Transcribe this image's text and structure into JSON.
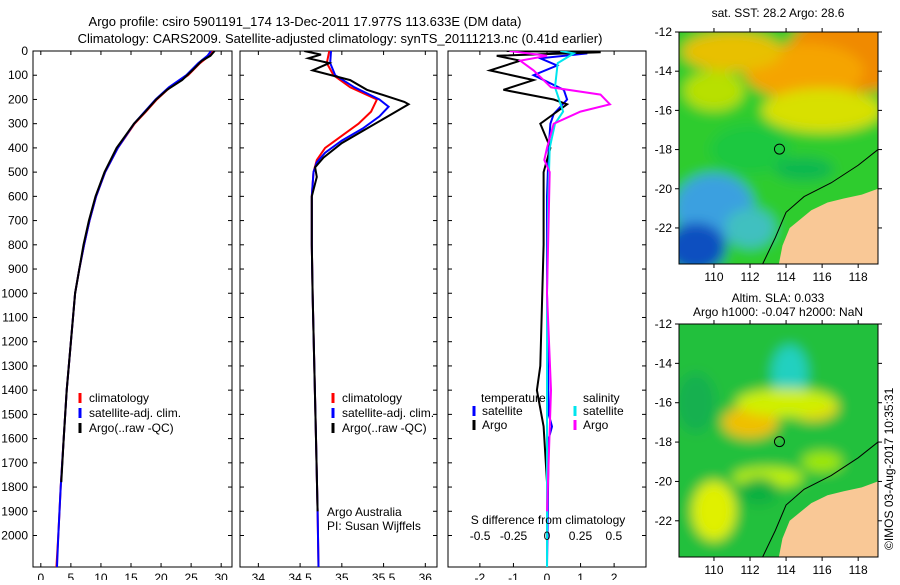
{
  "title": {
    "line1": "Argo profile: csiro 5901191_174 13-Dec-2011 17.977S 113.633E (DM data)",
    "line2": "Climatology: CARS2009. Satellite-adjusted climatology: synTS_20111213.nc (0.41d earlier)"
  },
  "colors": {
    "climatology": "#ff0000",
    "satellite": "#0000ff",
    "argo": "#000000",
    "s_satellite": "#00e5ee",
    "s_argo": "#ff00ff",
    "land": "#f9c896"
  },
  "chart_data": [
    {
      "type": "line",
      "id": "temperature",
      "xlabel": "temperature (deg C)",
      "ylabel": "",
      "xlim": [
        -1.3,
        31.8
      ],
      "ylim": [
        2130,
        0
      ],
      "xticks": [
        0,
        5,
        10,
        15,
        20,
        25,
        30
      ],
      "yticks": [
        0,
        100,
        200,
        300,
        400,
        500,
        600,
        700,
        800,
        900,
        1000,
        1100,
        1200,
        1300,
        1400,
        1500,
        1600,
        1700,
        1800,
        1900,
        2000
      ],
      "legend": [
        "climatology",
        "satellite-adj. clim.",
        "Argo(..raw -QC)"
      ],
      "legend_placement": "bottom-center",
      "series": [
        {
          "name": "climatology",
          "color": "#ff0000",
          "points": [
            [
              28.6,
              0
            ],
            [
              28,
              20
            ],
            [
              26.5,
              50
            ],
            [
              24.5,
              100
            ],
            [
              21.5,
              150
            ],
            [
              19.3,
              200
            ],
            [
              17.5,
              250
            ],
            [
              15.6,
              300
            ],
            [
              12.8,
              400
            ],
            [
              10.7,
              500
            ],
            [
              9.2,
              600
            ],
            [
              8.1,
              700
            ],
            [
              7.2,
              800
            ],
            [
              6.4,
              900
            ],
            [
              5.7,
              1000
            ],
            [
              5,
              1200
            ],
            [
              4.3,
              1400
            ],
            [
              3.8,
              1600
            ],
            [
              3.3,
              1800
            ],
            [
              2.9,
              2000
            ],
            [
              2.6,
              2130
            ]
          ]
        },
        {
          "name": "satellite-adj. clim.",
          "color": "#0000ff",
          "points": [
            [
              28.3,
              0
            ],
            [
              27.7,
              20
            ],
            [
              26.2,
              50
            ],
            [
              24.2,
              100
            ],
            [
              21.3,
              150
            ],
            [
              19.1,
              200
            ],
            [
              17.3,
              250
            ],
            [
              15.5,
              300
            ],
            [
              12.8,
              400
            ],
            [
              10.7,
              500
            ],
            [
              9.2,
              600
            ],
            [
              8.1,
              700
            ],
            [
              7.2,
              800
            ],
            [
              6.4,
              900
            ],
            [
              5.7,
              1000
            ],
            [
              5,
              1200
            ],
            [
              4.3,
              1400
            ],
            [
              3.8,
              1600
            ],
            [
              3.3,
              1800
            ],
            [
              2.9,
              2000
            ],
            [
              2.7,
              2130
            ]
          ]
        },
        {
          "name": "Argo(..raw -QC)",
          "color": "#000000",
          "points": [
            [
              28.9,
              0
            ],
            [
              28.2,
              20
            ],
            [
              26.8,
              40
            ],
            [
              25.2,
              80
            ],
            [
              23.5,
              120
            ],
            [
              21,
              160
            ],
            [
              19.2,
              200
            ],
            [
              17.4,
              250
            ],
            [
              15.5,
              300
            ],
            [
              12.6,
              400
            ],
            [
              10.6,
              500
            ],
            [
              9.1,
              600
            ],
            [
              8,
              700
            ],
            [
              7.1,
              800
            ],
            [
              6.4,
              900
            ],
            [
              5.7,
              1000
            ],
            [
              5,
              1200
            ],
            [
              4.3,
              1400
            ],
            [
              3.8,
              1600
            ],
            [
              3.4,
              1780
            ]
          ]
        }
      ]
    },
    {
      "type": "line",
      "id": "salinity",
      "xlabel": "salinity",
      "xlim": [
        33.78,
        36.14
      ],
      "ylim": [
        2130,
        0
      ],
      "xticks": [
        34,
        34.5,
        35,
        35.5,
        36
      ],
      "legend": [
        "climatology",
        "satellite-adj. clim.",
        "Argo(..raw -QC)"
      ],
      "legend_placement": "bottom-right",
      "annotations": [
        "Argo Australia",
        "PI: Susan Wijffels"
      ],
      "series": [
        {
          "name": "climatology",
          "color": "#ff0000",
          "points": [
            [
              34.85,
              0
            ],
            [
              34.82,
              50
            ],
            [
              34.9,
              100
            ],
            [
              35.1,
              150
            ],
            [
              35.42,
              200
            ],
            [
              35.35,
              250
            ],
            [
              35.2,
              300
            ],
            [
              35,
              350
            ],
            [
              34.8,
              400
            ],
            [
              34.7,
              450
            ],
            [
              34.66,
              500
            ],
            [
              34.64,
              600
            ],
            [
              34.64,
              800
            ],
            [
              34.65,
              1000
            ],
            [
              34.67,
              1300
            ],
            [
              34.69,
              1600
            ],
            [
              34.71,
              1900
            ],
            [
              34.72,
              2130
            ]
          ]
        },
        {
          "name": "satellite-adj. clim.",
          "color": "#0000ff",
          "points": [
            [
              34.87,
              0
            ],
            [
              34.86,
              50
            ],
            [
              34.92,
              100
            ],
            [
              35.15,
              150
            ],
            [
              35.45,
              200
            ],
            [
              35.56,
              230
            ],
            [
              35.45,
              270
            ],
            [
              35.25,
              320
            ],
            [
              35,
              370
            ],
            [
              34.8,
              420
            ],
            [
              34.7,
              460
            ],
            [
              34.66,
              500
            ],
            [
              34.64,
              600
            ],
            [
              34.64,
              800
            ],
            [
              34.65,
              1000
            ],
            [
              34.67,
              1300
            ],
            [
              34.69,
              1600
            ],
            [
              34.71,
              1900
            ],
            [
              34.72,
              2130
            ]
          ]
        },
        {
          "name": "Argo(..raw -QC)",
          "color": "#000000",
          "points": [
            [
              34.55,
              0
            ],
            [
              34.75,
              15
            ],
            [
              34.6,
              30
            ],
            [
              34.85,
              50
            ],
            [
              34.65,
              80
            ],
            [
              35.1,
              120
            ],
            [
              35.3,
              160
            ],
            [
              35.75,
              210
            ],
            [
              35.8,
              220
            ],
            [
              35.6,
              260
            ],
            [
              35.3,
              320
            ],
            [
              35,
              380
            ],
            [
              34.78,
              440
            ],
            [
              34.68,
              480
            ],
            [
              34.7,
              520
            ],
            [
              34.64,
              600
            ],
            [
              34.64,
              800
            ],
            [
              34.65,
              1000
            ],
            [
              34.67,
              1300
            ],
            [
              34.69,
              1600
            ],
            [
              34.71,
              1900
            ]
          ]
        }
      ]
    },
    {
      "type": "line",
      "id": "difference",
      "xlabel": "T difference from climatology",
      "x2label": "S difference from climatology",
      "xlim": [
        -2.95,
        2.95
      ],
      "x2lim": [
        -0.74,
        0.74
      ],
      "ylim": [
        2130,
        0
      ],
      "xticks": [
        -2,
        -1,
        0,
        1,
        2
      ],
      "x2ticks": [
        -0.5,
        -0.25,
        0,
        0.25,
        0.5
      ],
      "x2ticklabels": [
        "-0.5",
        "-0.25",
        "0",
        "0.25",
        "0.5"
      ],
      "legend_groups": [
        {
          "title": "temperature",
          "items": [
            {
              "label": "satellite",
              "color": "#0000ff"
            },
            {
              "label": "Argo",
              "color": "#000000"
            }
          ]
        },
        {
          "title": "salinity",
          "items": [
            {
              "label": "satellite",
              "color": "#00e5ee"
            },
            {
              "label": "Argo",
              "color": "#ff00ff"
            }
          ]
        }
      ],
      "series": [
        {
          "name": "T satellite",
          "axis": "T",
          "color": "#0000ff",
          "points": [
            [
              -0.3,
              0
            ],
            [
              1.2,
              10
            ],
            [
              -0.2,
              30
            ],
            [
              0.3,
              60
            ],
            [
              -0.4,
              100
            ],
            [
              0.5,
              160
            ],
            [
              0.6,
              200
            ],
            [
              0.2,
              260
            ],
            [
              0.1,
              300
            ],
            [
              0.05,
              400
            ],
            [
              0,
              600
            ],
            [
              0,
              1000
            ],
            [
              0.05,
              1500
            ],
            [
              0.15,
              1550
            ],
            [
              0.05,
              1600
            ],
            [
              0,
              2130
            ]
          ]
        },
        {
          "name": "T Argo",
          "axis": "T",
          "color": "#000000",
          "points": [
            [
              -1.2,
              0
            ],
            [
              1.6,
              5
            ],
            [
              -1.5,
              20
            ],
            [
              -0.8,
              40
            ],
            [
              -1.7,
              80
            ],
            [
              -0.4,
              120
            ],
            [
              -1.3,
              160
            ],
            [
              0.2,
              200
            ],
            [
              0.6,
              220
            ],
            [
              0.2,
              260
            ],
            [
              -0.2,
              300
            ],
            [
              0.1,
              400
            ],
            [
              -0.1,
              500
            ],
            [
              -0.1,
              800
            ],
            [
              -0.2,
              1300
            ],
            [
              -0.3,
              1400
            ],
            [
              -0.1,
              1550
            ],
            [
              0,
              1780
            ]
          ]
        },
        {
          "name": "S satellite",
          "axis": "S",
          "color": "#00e5ee",
          "points": [
            [
              0.1,
              0
            ],
            [
              0.2,
              10
            ],
            [
              0.08,
              50
            ],
            [
              0.06,
              150
            ],
            [
              0.12,
              250
            ],
            [
              0.06,
              300
            ],
            [
              0.02,
              400
            ],
            [
              0.01,
              600
            ],
            [
              0.0,
              1000
            ],
            [
              0.0,
              2130
            ]
          ]
        },
        {
          "name": "S Argo",
          "axis": "S",
          "color": "#ff00ff",
          "points": [
            [
              -0.28,
              0
            ],
            [
              0.0,
              20
            ],
            [
              -0.2,
              40
            ],
            [
              -0.1,
              80
            ],
            [
              0.03,
              150
            ],
            [
              0.4,
              180
            ],
            [
              0.47,
              220
            ],
            [
              0.25,
              250
            ],
            [
              0.05,
              300
            ],
            [
              0.0,
              400
            ],
            [
              -0.02,
              450
            ],
            [
              0.02,
              500
            ],
            [
              0.0,
              1000
            ],
            [
              0.03,
              1400
            ],
            [
              0.0,
              1900
            ]
          ]
        }
      ]
    },
    {
      "type": "heatmap",
      "id": "sst-map",
      "title": "sat. SST: 28.2 Argo: 28.6",
      "xlim": [
        108.06,
        119.1
      ],
      "ylim": [
        -23.84,
        -12
      ],
      "xticks": [
        110,
        112,
        114,
        116,
        118
      ],
      "yticks": [
        -12,
        -14,
        -16,
        -18,
        -20,
        -22
      ],
      "float_position": [
        113.633,
        -17.977
      ]
    },
    {
      "type": "heatmap",
      "id": "sla-map",
      "title_line1": "Altim. SLA: 0.033",
      "title_line2": "Argo h1000: -0.047 h2000: NaN",
      "xlim": [
        108.06,
        119.1
      ],
      "ylim": [
        -23.84,
        -12
      ],
      "xticks": [
        110,
        112,
        114,
        116,
        118
      ],
      "yticks": [
        -12,
        -14,
        -16,
        -18,
        -20,
        -22
      ],
      "float_position": [
        113.633,
        -17.977
      ]
    }
  ],
  "credit": "©IMOS 03-Aug-2017 10:35:31"
}
